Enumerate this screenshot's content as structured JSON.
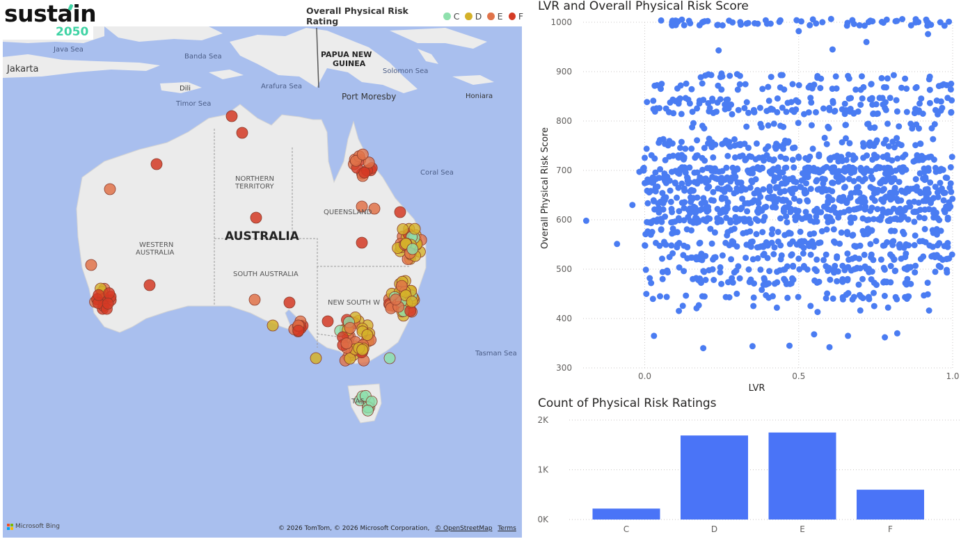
{
  "logo": {
    "main": "sustain",
    "sub": "2050"
  },
  "map": {
    "legend": {
      "title": "Overall Physical Risk Rating",
      "items": [
        {
          "label": "C",
          "color": "#8fe0ad"
        },
        {
          "label": "D",
          "color": "#d4b12a"
        },
        {
          "label": "E",
          "color": "#e0734a"
        },
        {
          "label": "F",
          "color": "#d43a24"
        }
      ]
    },
    "labels": {
      "java_sea": "Java Sea",
      "banda_sea": "Banda Sea",
      "png": "PAPUA NEW",
      "png2": "GUINEA",
      "jakarta": "Jakarta",
      "dili": "Dili",
      "arafura": "Arafura Sea",
      "timor": "Timor Sea",
      "solomon": "Solomon Sea",
      "port_moresby": "Port Moresby",
      "honiara": "Honiara",
      "coral": "Coral Sea",
      "nt1": "NORTHERN",
      "nt2": "TERRITORY",
      "qld": "QUEENSLAND",
      "australia": "AUSTRALIA",
      "wa1": "WESTERN",
      "wa2": "AUSTRALIA",
      "sa": "SOUTH AUSTRALIA",
      "nsw": "NEW SOUTH W",
      "tasman": "Tasman Sea",
      "tas": "TAS"
    },
    "bing": "Microsoft Bing",
    "attribution": "© 2026 TomTom, © 2026 Microsoft Corporation,",
    "osm": "© OpenStreetMap",
    "terms": "Terms"
  },
  "scatter": {
    "title": "LVR and Overall Physical Risk Score",
    "xlabel": "LVR",
    "ylabel": "Overall Physical Risk Score",
    "xticks": [
      "0.0",
      "0.5",
      "1.0"
    ],
    "yticks": [
      "300",
      "400",
      "500",
      "600",
      "700",
      "800",
      "900",
      "1000"
    ],
    "point_color": "#4a7cf2"
  },
  "bar": {
    "title": "Count of Physical Risk Ratings",
    "yticks": [
      "0K",
      "1K",
      "2K"
    ],
    "bar_color": "#4a74f7"
  },
  "chart_data": [
    {
      "type": "scatter",
      "title": "LVR and Overall Physical Risk Score",
      "xlabel": "LVR",
      "ylabel": "Overall Physical Risk Score",
      "xlim": [
        -0.2,
        1.0
      ],
      "ylim": [
        300,
        1000
      ],
      "grid": true,
      "points": [
        [
          -0.19,
          598
        ],
        [
          -0.09,
          551
        ],
        [
          -0.04,
          630
        ],
        [
          0.03,
          365
        ],
        [
          0.24,
          943
        ],
        [
          0.35,
          344
        ],
        [
          0.38,
          458
        ],
        [
          0.47,
          345
        ],
        [
          0.55,
          368
        ],
        [
          0.66,
          365
        ],
        [
          0.78,
          362
        ],
        [
          0.82,
          370
        ],
        [
          0.92,
          976
        ],
        [
          0.96,
          1000
        ],
        [
          0.72,
          960
        ],
        [
          0.61,
          945
        ],
        [
          0.5,
          982
        ],
        [
          0.3,
          895
        ],
        [
          0.19,
          340
        ],
        [
          0.6,
          342
        ]
      ],
      "note_bands": [
        {
          "y": 1000,
          "x_range": [
            0.0,
            1.0
          ]
        },
        {
          "y": 870,
          "x_range": [
            0.0,
            1.0
          ]
        },
        {
          "y": 840,
          "x_range": [
            0.0,
            1.0
          ]
        },
        {
          "y": 820,
          "x_range": [
            0.0,
            1.0
          ]
        },
        {
          "y": 750,
          "x_range": [
            0.0,
            0.95
          ]
        },
        {
          "y": 700,
          "x_range": [
            -0.02,
            1.0
          ]
        },
        {
          "y": 650,
          "x_range": [
            0.0,
            1.0
          ]
        },
        {
          "y": 620,
          "x_range": [
            0.0,
            1.0
          ]
        },
        {
          "y": 600,
          "x_range": [
            0.0,
            1.0
          ]
        },
        {
          "y": 550,
          "x_range": [
            0.0,
            1.0
          ]
        },
        {
          "y": 520,
          "x_range": [
            0.0,
            1.0
          ]
        },
        {
          "y": 500,
          "x_range": [
            0.0,
            1.0
          ]
        },
        {
          "y": 475,
          "x_range": [
            0.0,
            0.95
          ]
        },
        {
          "y": 445,
          "x_range": [
            0.0,
            0.95
          ]
        }
      ]
    },
    {
      "type": "bar",
      "title": "Count of Physical Risk Ratings",
      "categories": [
        "C",
        "D",
        "E",
        "F"
      ],
      "values": [
        220,
        1690,
        1750,
        600
      ],
      "ylim": [
        0,
        2000
      ],
      "yticks": [
        "0K",
        "1K",
        "2K"
      ]
    }
  ]
}
